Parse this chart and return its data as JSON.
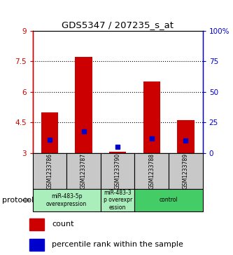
{
  "title": "GDS5347 / 207235_s_at",
  "samples": [
    "GSM1233786",
    "GSM1233787",
    "GSM1233790",
    "GSM1233788",
    "GSM1233789"
  ],
  "red_bar_tops": [
    5.0,
    7.7,
    3.05,
    6.5,
    4.6
  ],
  "red_bar_bottom": 3.0,
  "blue_marker_y": [
    3.65,
    4.05,
    3.32,
    3.72,
    3.6
  ],
  "blue_marker_size": 25,
  "ylim": [
    3.0,
    9.0
  ],
  "yticks_left": [
    3,
    4.5,
    6,
    7.5,
    9
  ],
  "ytick_labels_left": [
    "3",
    "4.5",
    "6",
    "7.5",
    "9"
  ],
  "yticks_right": [
    0,
    25,
    50,
    75,
    100
  ],
  "ytick_labels_right": [
    "0",
    "25",
    "50",
    "75",
    "100%"
  ],
  "left_axis_color": "#cc0000",
  "right_axis_color": "#0000cc",
  "bar_color": "#cc0000",
  "blue_color": "#0000cc",
  "protocols": [
    {
      "label": "miR-483-5p\noverexpression",
      "start": 0,
      "end": 2,
      "color": "#aaeebb"
    },
    {
      "label": "miR-483-3\np overexpr\nession",
      "start": 2,
      "end": 3,
      "color": "#aaeebb"
    },
    {
      "label": "control",
      "start": 3,
      "end": 5,
      "color": "#44cc66"
    }
  ],
  "protocol_label": "protocol",
  "legend_count_label": "count",
  "legend_pct_label": "percentile rank within the sample",
  "bg_color": "#ffffff",
  "sample_box_color": "#c8c8c8"
}
